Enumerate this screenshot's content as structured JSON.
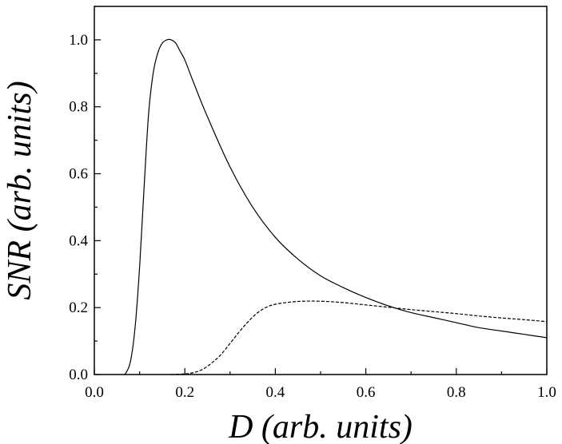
{
  "chart_data": {
    "type": "line",
    "title": "",
    "xlabel": "D (arb. units)",
    "ylabel": "SNR (arb. units)",
    "xlim": [
      0.0,
      1.0
    ],
    "ylim": [
      0.0,
      1.1
    ],
    "xticks": [
      "0.0",
      "0.2",
      "0.4",
      "0.6",
      "0.8",
      "1.0"
    ],
    "yticks": [
      "0.0",
      "0.2",
      "0.4",
      "0.6",
      "0.8",
      "1.0"
    ],
    "grid": false,
    "legend": "none",
    "series": [
      {
        "style": "solid",
        "color": "#000000",
        "x": [
          0.065,
          0.07,
          0.08,
          0.09,
          0.1,
          0.11,
          0.12,
          0.13,
          0.14,
          0.15,
          0.16,
          0.17,
          0.18,
          0.19,
          0.2,
          0.22,
          0.25,
          0.3,
          0.35,
          0.4,
          0.45,
          0.5,
          0.55,
          0.6,
          0.65,
          0.7,
          0.75,
          0.8,
          0.85,
          0.9,
          0.95,
          1.0
        ],
        "y": [
          0.0,
          0.005,
          0.04,
          0.14,
          0.32,
          0.56,
          0.78,
          0.9,
          0.96,
          0.99,
          1.0,
          1.0,
          0.99,
          0.965,
          0.94,
          0.87,
          0.77,
          0.62,
          0.5,
          0.41,
          0.345,
          0.295,
          0.26,
          0.23,
          0.205,
          0.185,
          0.17,
          0.155,
          0.14,
          0.13,
          0.12,
          0.11
        ]
      },
      {
        "style": "dashed",
        "color": "#000000",
        "x": [
          0.17,
          0.2,
          0.22,
          0.24,
          0.26,
          0.28,
          0.3,
          0.32,
          0.34,
          0.36,
          0.38,
          0.4,
          0.43,
          0.46,
          0.5,
          0.55,
          0.6,
          0.65,
          0.7,
          0.75,
          0.8,
          0.85,
          0.9,
          0.95,
          1.0
        ],
        "y": [
          0.0,
          0.002,
          0.006,
          0.016,
          0.035,
          0.06,
          0.093,
          0.127,
          0.158,
          0.184,
          0.201,
          0.21,
          0.216,
          0.219,
          0.219,
          0.215,
          0.208,
          0.201,
          0.194,
          0.188,
          0.182,
          0.175,
          0.169,
          0.164,
          0.158
        ]
      }
    ]
  }
}
